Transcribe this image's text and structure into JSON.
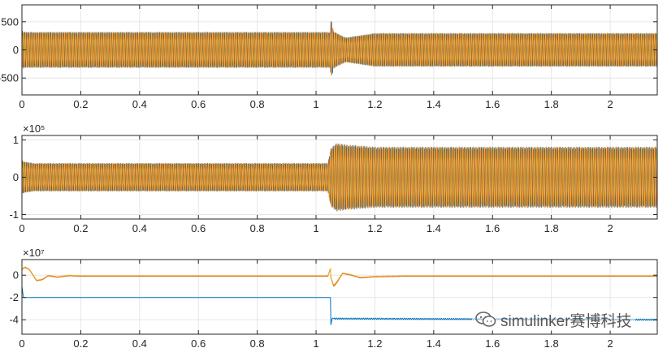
{
  "chart_data": [
    {
      "type": "line",
      "title": "",
      "xlabel": "",
      "ylabel": "",
      "xlim": [
        0,
        2.16
      ],
      "ylim": [
        -800,
        800
      ],
      "x_ticks": [
        0,
        0.2,
        0.4,
        0.6,
        0.8,
        1,
        1.2,
        1.4,
        1.6,
        1.8,
        2
      ],
      "x_tick_labels": [
        "0",
        "0.2",
        "0.4",
        "0.6",
        "0.8",
        "1",
        "1.2",
        "1.4",
        "1.6",
        "1.8",
        "2"
      ],
      "y_ticks": [
        500,
        0,
        -500
      ],
      "y_tick_labels": [
        "500",
        "0",
        "-500"
      ],
      "exponent_label": "",
      "grid": true,
      "series": [
        {
          "color": "#0072BD",
          "x": [
            0,
            0.02,
            1.049,
            1.05,
            1.06,
            1.1,
            1.2,
            2.16
          ],
          "amplitude": [
            340,
            320,
            320,
            600,
            330,
            220,
            300,
            300
          ]
        },
        {
          "color": "#D95319",
          "x": [
            0,
            0.02,
            1.049,
            1.05,
            1.06,
            1.1,
            1.2,
            2.16
          ],
          "amplitude": [
            330,
            320,
            320,
            520,
            330,
            220,
            300,
            300
          ]
        },
        {
          "color": "#EDB120",
          "x": [
            0,
            0.02,
            1.049,
            1.05,
            1.06,
            1.1,
            1.2,
            2.16
          ],
          "amplitude": [
            320,
            320,
            320,
            480,
            330,
            220,
            300,
            300
          ]
        }
      ]
    },
    {
      "type": "line",
      "title": "",
      "xlabel": "",
      "ylabel": "",
      "xlim": [
        0,
        2.16
      ],
      "ylim": [
        -1.12,
        1.12
      ],
      "x_ticks": [
        0,
        0.2,
        0.4,
        0.6,
        0.8,
        1,
        1.2,
        1.4,
        1.6,
        1.8,
        2
      ],
      "x_tick_labels": [
        "0",
        "0.2",
        "0.4",
        "0.6",
        "0.8",
        "1",
        "1.2",
        "1.4",
        "1.6",
        "1.8",
        "2"
      ],
      "y_ticks": [
        1,
        0,
        -1
      ],
      "y_tick_labels": [
        "1",
        "0",
        "-1"
      ],
      "exponent_label": "×10⁵",
      "grid": true,
      "series": [
        {
          "color": "#0072BD",
          "x": [
            0,
            0.01,
            0.04,
            1.04,
            1.05,
            1.07,
            1.1,
            1.2,
            2.16
          ],
          "amplitude": [
            0.45,
            0.42,
            0.38,
            0.38,
            0.78,
            0.92,
            0.88,
            0.82,
            0.82
          ]
        },
        {
          "color": "#D95319",
          "x": [
            0,
            0.01,
            0.04,
            1.04,
            1.05,
            1.07,
            1.1,
            1.2,
            2.16
          ],
          "amplitude": [
            0.45,
            0.42,
            0.38,
            0.38,
            0.78,
            0.92,
            0.88,
            0.82,
            0.82
          ]
        },
        {
          "color": "#EDB120",
          "x": [
            0,
            0.01,
            0.04,
            1.04,
            1.05,
            1.07,
            1.1,
            1.2,
            2.16
          ],
          "amplitude": [
            0.45,
            0.42,
            0.38,
            0.38,
            0.78,
            0.92,
            0.88,
            0.82,
            0.82
          ]
        }
      ]
    },
    {
      "type": "line",
      "title": "",
      "xlabel": "",
      "ylabel": "",
      "xlim": [
        0,
        2.16
      ],
      "ylim": [
        -5.3,
        1.4
      ],
      "x_ticks": [
        0,
        0.2,
        0.4,
        0.6,
        0.8,
        1,
        1.2,
        1.4,
        1.6,
        1.8,
        2
      ],
      "x_tick_labels": [
        "0",
        "0.2",
        "0.4",
        "0.6",
        "0.8",
        "1",
        "1.2",
        "1.4",
        "1.6",
        "1.8",
        "2"
      ],
      "y_ticks": [
        0,
        -2,
        -4
      ],
      "y_tick_labels": [
        "0",
        "-2",
        "-4"
      ],
      "exponent_label": "×10⁷",
      "grid": true,
      "series": [
        {
          "color": "#D95319",
          "x": [
            0,
            0.01,
            0.025,
            0.05,
            0.07,
            0.09,
            0.12,
            0.16,
            0.2,
            1.04,
            1.049,
            1.05,
            1.06,
            1.07,
            1.09,
            1.12,
            1.15,
            1.2,
            1.3,
            2.16
          ],
          "y": [
            0.5,
            0.7,
            0.5,
            -0.5,
            -0.4,
            -0.05,
            -0.2,
            -0.05,
            -0.1,
            -0.1,
            0.6,
            -0.2,
            -1.0,
            -0.7,
            0.15,
            0.0,
            -0.25,
            -0.15,
            -0.1,
            -0.1
          ]
        },
        {
          "color": "#EDB120",
          "x": [
            0,
            0.01,
            0.025,
            0.05,
            0.07,
            0.09,
            0.12,
            0.16,
            0.2,
            1.04,
            1.049,
            1.05,
            1.06,
            1.07,
            1.09,
            1.12,
            1.15,
            1.2,
            1.3,
            2.16
          ],
          "y": [
            0.55,
            0.75,
            0.55,
            -0.45,
            -0.35,
            0.0,
            -0.15,
            0.0,
            -0.05,
            -0.05,
            0.6,
            -0.15,
            -0.9,
            -0.6,
            0.2,
            0.05,
            -0.2,
            -0.1,
            -0.05,
            -0.05
          ]
        },
        {
          "color": "#0072BD",
          "x": [
            0,
            0.005,
            0.01,
            1.049,
            1.05,
            1.055,
            1.06,
            2.16
          ],
          "y": [
            -1.0,
            -2.0,
            -2.0,
            -2.0,
            -4.5,
            -3.85,
            -3.9,
            -4.0
          ]
        }
      ]
    }
  ],
  "watermark": {
    "text": "simulinker赛博科技",
    "icon": "wechat-icon"
  }
}
